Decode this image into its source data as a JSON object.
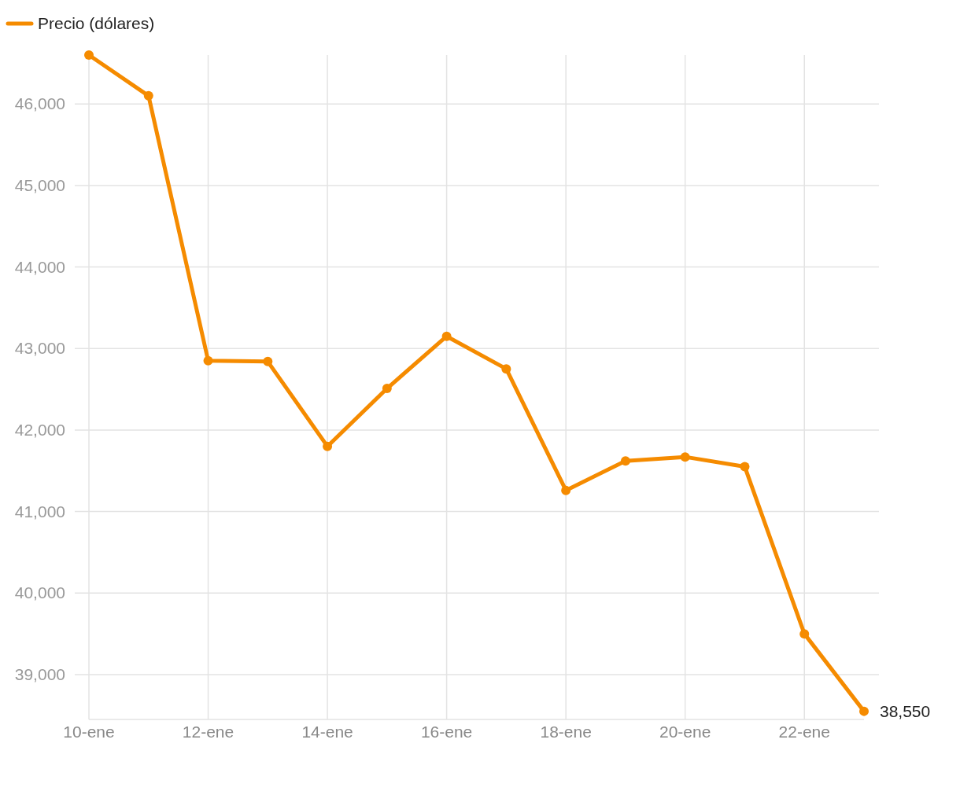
{
  "chart_data": {
    "type": "line",
    "x": [
      "--01-10",
      "--01-11",
      "--01-12",
      "--01-13",
      "--01-14",
      "--01-15",
      "--01-16",
      "--01-17",
      "--01-18",
      "--01-19",
      "--01-20",
      "--01-21",
      "--01-22",
      "--01-23"
    ],
    "series": [
      {
        "name": "Precio (dólares)",
        "color": "#f58b00",
        "values": [
          46600,
          46100,
          42850,
          42840,
          41800,
          42510,
          43150,
          42750,
          41260,
          41620,
          41670,
          41550,
          39500,
          38550
        ],
        "value_labels": [
          null,
          null,
          null,
          null,
          null,
          null,
          null,
          null,
          null,
          null,
          null,
          null,
          null,
          "38,550"
        ]
      }
    ],
    "xlim": [
      "--01-10",
      "--01-23"
    ],
    "xticks": [
      {
        "value": "--01-10",
        "label": "10-ene"
      },
      {
        "value": "--01-12",
        "label": "12-ene"
      },
      {
        "value": "--01-14",
        "label": "14-ene"
      },
      {
        "value": "--01-16",
        "label": "16-ene"
      },
      {
        "value": "--01-18",
        "label": "18-ene"
      },
      {
        "value": "--01-20",
        "label": "20-ene"
      },
      {
        "value": "--01-22",
        "label": "22-ene"
      }
    ],
    "ylim": [
      38450,
      46600
    ],
    "yticks": [
      {
        "value": 39000,
        "label": "39,000"
      },
      {
        "value": 40000,
        "label": "40,000"
      },
      {
        "value": 41000,
        "label": "41,000"
      },
      {
        "value": 42000,
        "label": "42,000"
      },
      {
        "value": 43000,
        "label": "43,000"
      },
      {
        "value": 44000,
        "label": "44,000"
      },
      {
        "value": 45000,
        "label": "45,000"
      },
      {
        "value": 46000,
        "label": "46,000"
      }
    ],
    "grid": true,
    "legend": "top left",
    "marker": "circle",
    "line_style": "solid"
  }
}
